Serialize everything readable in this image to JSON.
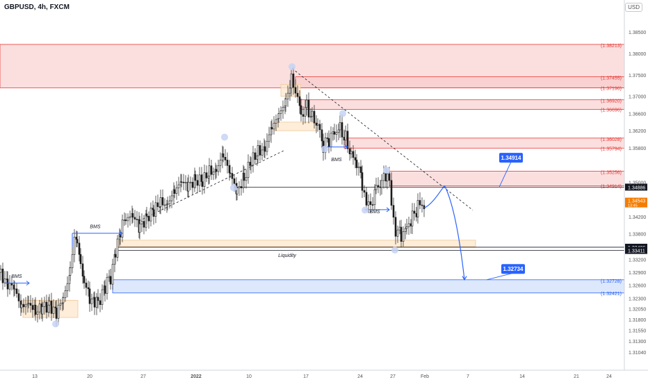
{
  "header": {
    "symbol": "GBPUSD, 4h, FXCM",
    "currency": "USD"
  },
  "colors": {
    "up": "#26a69a",
    "down": "#131722",
    "candle": "#1b1b1b",
    "supply_zone": "#f7c5c5",
    "supply_border": "#e53935",
    "demand_zone": "#d6e2fb",
    "demand_border": "#2962ff",
    "liquidity_zone": "#fde8cf",
    "arrow": "#2962ff",
    "callout": "#2962ff"
  },
  "chart_data": {
    "type": "line",
    "title": "GBPUSD, 4h, FXCM",
    "ylim": [
      1.308,
      1.3905
    ],
    "y_ticks": [
      "1.38500",
      "1.38000",
      "1.37500",
      "1.37000",
      "1.36600",
      "1.36200",
      "1.35800",
      "1.35000",
      "1.34200",
      "1.33800",
      "1.33200",
      "1.32900",
      "1.32600",
      "1.32300",
      "1.32050",
      "1.31800",
      "1.31550",
      "1.31300",
      "1.31040"
    ],
    "x_ticks": [
      {
        "label": "13",
        "x": 50
      },
      {
        "label": "20",
        "x": 129
      },
      {
        "label": "27",
        "x": 206
      },
      {
        "label": "2022",
        "x": 282
      },
      {
        "label": "10",
        "x": 358
      },
      {
        "label": "17",
        "x": 440
      },
      {
        "label": "24",
        "x": 518
      },
      {
        "label": "27",
        "x": 565
      },
      {
        "label": "Feb",
        "x": 611
      },
      {
        "label": "7",
        "x": 673
      },
      {
        "label": "14",
        "x": 751
      },
      {
        "label": "21",
        "x": 829
      },
      {
        "label": "24",
        "x": 876
      }
    ],
    "price_path": [
      [
        0,
        1.329
      ],
      [
        10,
        1.327
      ],
      [
        20,
        1.324
      ],
      [
        30,
        1.321
      ],
      [
        40,
        1.323
      ],
      [
        50,
        1.319
      ],
      [
        60,
        1.3205
      ],
      [
        70,
        1.322
      ],
      [
        80,
        1.32
      ],
      [
        90,
        1.3215
      ],
      [
        100,
        1.33
      ],
      [
        106,
        1.338
      ],
      [
        110,
        1.337
      ],
      [
        115,
        1.331
      ],
      [
        120,
        1.326
      ],
      [
        128,
        1.323
      ],
      [
        135,
        1.3215
      ],
      [
        140,
        1.3225
      ],
      [
        150,
        1.3255
      ],
      [
        158,
        1.328
      ],
      [
        165,
        1.334
      ],
      [
        172,
        1.338
      ],
      [
        180,
        1.342
      ],
      [
        190,
        1.341
      ],
      [
        200,
        1.34
      ],
      [
        210,
        1.3425
      ],
      [
        220,
        1.343
      ],
      [
        230,
        1.3445
      ],
      [
        240,
        1.346
      ],
      [
        250,
        1.348
      ],
      [
        260,
        1.349
      ],
      [
        270,
        1.35
      ],
      [
        280,
        1.351
      ],
      [
        290,
        1.3495
      ],
      [
        300,
        1.352
      ],
      [
        310,
        1.354
      ],
      [
        320,
        1.356
      ],
      [
        330,
        1.351
      ],
      [
        340,
        1.349
      ],
      [
        350,
        1.351
      ],
      [
        360,
        1.354
      ],
      [
        370,
        1.357
      ],
      [
        380,
        1.359
      ],
      [
        390,
        1.362
      ],
      [
        400,
        1.365
      ],
      [
        410,
        1.37
      ],
      [
        418,
        1.374
      ],
      [
        424,
        1.372
      ],
      [
        432,
        1.366
      ],
      [
        440,
        1.368
      ],
      [
        448,
        1.365
      ],
      [
        456,
        1.363
      ],
      [
        464,
        1.358
      ],
      [
        472,
        1.36
      ],
      [
        480,
        1.362
      ],
      [
        488,
        1.363
      ],
      [
        496,
        1.36
      ],
      [
        504,
        1.356
      ],
      [
        512,
        1.354
      ],
      [
        520,
        1.35
      ],
      [
        526,
        1.344
      ],
      [
        532,
        1.345
      ],
      [
        540,
        1.349
      ],
      [
        548,
        1.35
      ],
      [
        556,
        1.352
      ],
      [
        562,
        1.345
      ],
      [
        568,
        1.339
      ],
      [
        576,
        1.338
      ],
      [
        584,
        1.34
      ],
      [
        592,
        1.342
      ],
      [
        600,
        1.344
      ],
      [
        610,
        1.345
      ]
    ],
    "projection_path": [
      [
        610,
        1.344
      ],
      [
        625,
        1.345
      ],
      [
        640,
        1.349
      ],
      [
        655,
        1.344
      ],
      [
        668,
        1.3273
      ]
    ],
    "zones": [
      {
        "kind": "supply",
        "top": 1.3821,
        "bottom": 1.372,
        "x1": 0,
        "x2": 898,
        "label": "(1.38213)"
      },
      {
        "kind": "supply",
        "top": 1.37455,
        "bottom": 1.37196,
        "x1": 425,
        "x2": 898,
        "label": "(1.37455)",
        "label2": "(1.37196)"
      },
      {
        "kind": "supply",
        "top": 1.3692,
        "bottom": 1.36696,
        "x1": 432,
        "x2": 898,
        "label": "(1.36920)",
        "label2": "(1.36696)"
      },
      {
        "kind": "supply",
        "top": 1.36028,
        "bottom": 1.35794,
        "x1": 495,
        "x2": 898,
        "label": "(1.36028)",
        "label2": "(1.35794)"
      },
      {
        "kind": "supply",
        "top": 1.35256,
        "bottom": 1.34914,
        "x1": 560,
        "x2": 898,
        "label": "(1.35256)",
        "label2": "(1.34914)"
      },
      {
        "kind": "liquidity",
        "top": 1.3365,
        "bottom": 1.335,
        "x1": 170,
        "x2": 684,
        "label": ""
      },
      {
        "kind": "liquidity",
        "top": 1.3728,
        "bottom": 1.37,
        "x1": 404,
        "x2": 432,
        "label": ""
      },
      {
        "kind": "liquidity",
        "top": 1.364,
        "bottom": 1.362,
        "x1": 395,
        "x2": 455,
        "label": ""
      },
      {
        "kind": "liquidity",
        "top": 1.3225,
        "bottom": 1.3185,
        "x1": 33,
        "x2": 112,
        "label": ""
      },
      {
        "kind": "demand",
        "top": 1.32728,
        "bottom": 1.32421,
        "x1": 162,
        "x2": 898,
        "label": "(1.32728)",
        "label2": "(1.32421)"
      }
    ],
    "levels": [
      {
        "price": 1.34886,
        "x1": 337,
        "x2": 898,
        "label": "1.34886"
      },
      {
        "price": 1.33486,
        "x1": 170,
        "x2": 898,
        "label": "1.33486"
      },
      {
        "price": 1.33411,
        "x1": 170,
        "x2": 898,
        "label": "1.33411"
      }
    ],
    "current_price": {
      "value": "1.34543",
      "sub": "13:45"
    },
    "annotations": [
      {
        "text": "BMS",
        "x": 24,
        "price": 1.3277
      },
      {
        "text": "BMS",
        "x": 137,
        "price": 1.3393
      },
      {
        "text": "BMS",
        "x": 484,
        "price": 1.3549
      },
      {
        "text": "BMS",
        "x": 539,
        "price": 1.3428
      },
      {
        "text": "Liquidity",
        "x": 413,
        "price": 1.3326
      }
    ],
    "callouts": [
      {
        "text": "1.34914",
        "x": 735,
        "price": 1.3557
      },
      {
        "text": "1.32734",
        "x": 738,
        "price": 1.3298
      }
    ],
    "pivots": [
      [
        80,
        1.317
      ],
      [
        323,
        1.3605
      ],
      [
        336,
        1.3487
      ],
      [
        420,
        1.3769
      ],
      [
        493,
        1.366
      ],
      [
        467,
        1.3577
      ],
      [
        556,
        1.3528
      ],
      [
        525,
        1.3435
      ],
      [
        568,
        1.3342
      ]
    ],
    "trendlines": [
      [
        [
          420,
          1.3765
        ],
        [
          680,
          1.3435
        ]
      ],
      [
        [
          200,
          1.341
        ],
        [
          410,
          1.3575
        ]
      ]
    ]
  }
}
